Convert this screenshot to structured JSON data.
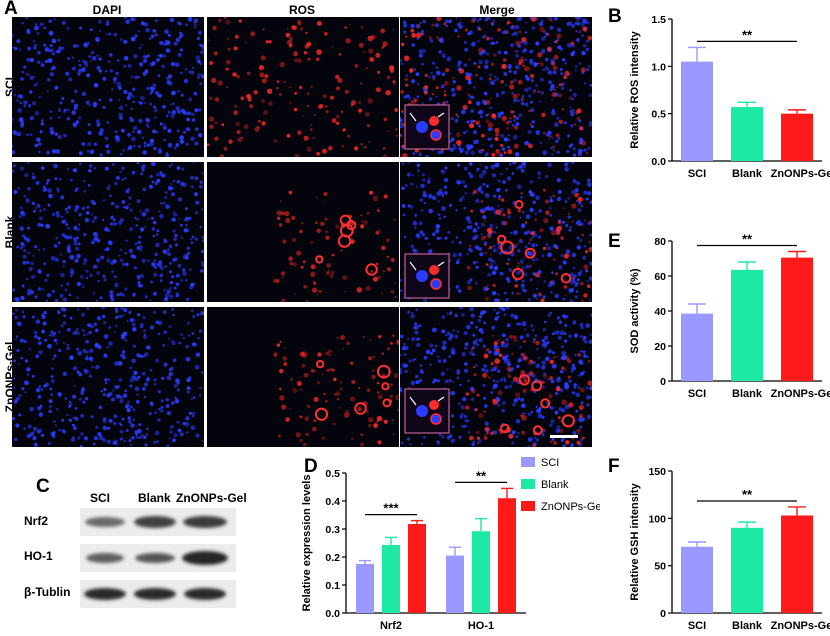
{
  "panel_a": {
    "letter": "A",
    "columns": [
      "DAPI",
      "ROS",
      "Merge"
    ],
    "rows": [
      "SCI",
      "Blank",
      "ZnONPs-Gel"
    ]
  },
  "panel_c": {
    "letter": "C",
    "lanes": [
      "SCI",
      "Blank",
      "ZnONPs-Gel"
    ],
    "proteins": [
      "Nrf2",
      "HO-1",
      "β-Tublin"
    ]
  },
  "colors": {
    "SCI": "#9999ff",
    "Blank": "#1de9a5",
    "ZnONPs-Gel": "#ff1a1a"
  },
  "chart_data": [
    {
      "id": "B",
      "type": "bar",
      "letter": "B",
      "categories": [
        "SCI",
        "Blank",
        "ZnONPs-Gel"
      ],
      "values": [
        1.05,
        0.57,
        0.5
      ],
      "errors": [
        0.15,
        0.05,
        0.04
      ],
      "ylabel": "Relative ROS intensity",
      "ylim": [
        0,
        1.5
      ],
      "yticks": [
        "0.0",
        "0.5",
        "1.0",
        "1.5"
      ],
      "significance": "**"
    },
    {
      "id": "E",
      "type": "bar",
      "letter": "E",
      "categories": [
        "SCI",
        "Blank",
        "ZnONPs-Gel"
      ],
      "values": [
        38.5,
        63.5,
        70.5
      ],
      "errors": [
        5.5,
        4.5,
        3.5
      ],
      "ylabel": "SOD activity (%)",
      "ylim": [
        0,
        80
      ],
      "yticks": [
        "0",
        "20",
        "40",
        "60",
        "80"
      ],
      "significance": "**"
    },
    {
      "id": "F",
      "type": "bar",
      "letter": "F",
      "categories": [
        "SCI",
        "Blank",
        "ZnONPs-Gel"
      ],
      "values": [
        70,
        90,
        103
      ],
      "errors": [
        5,
        6,
        9
      ],
      "ylabel": "Relative GSH intensity",
      "ylim": [
        0,
        150
      ],
      "yticks": [
        "0",
        "50",
        "100",
        "150"
      ],
      "significance": "**"
    },
    {
      "id": "D",
      "type": "bar",
      "letter": "D",
      "categories": [
        "Nrf2",
        "HO-1"
      ],
      "series": [
        {
          "name": "SCI",
          "values": [
            0.175,
            0.205
          ],
          "errors": [
            0.012,
            0.03
          ]
        },
        {
          "name": "Blank",
          "values": [
            0.243,
            0.292
          ],
          "errors": [
            0.027,
            0.045
          ]
        },
        {
          "name": "ZnONPs-Gel",
          "values": [
            0.318,
            0.41
          ],
          "errors": [
            0.012,
            0.035
          ]
        }
      ],
      "ylabel": "Relative expression levels",
      "ylim": [
        0,
        0.5
      ],
      "yticks": [
        "0.0",
        "0.1",
        "0.2",
        "0.3",
        "0.4",
        "0.5"
      ],
      "significance": [
        "***",
        "**"
      ],
      "legend": "top-right"
    }
  ]
}
